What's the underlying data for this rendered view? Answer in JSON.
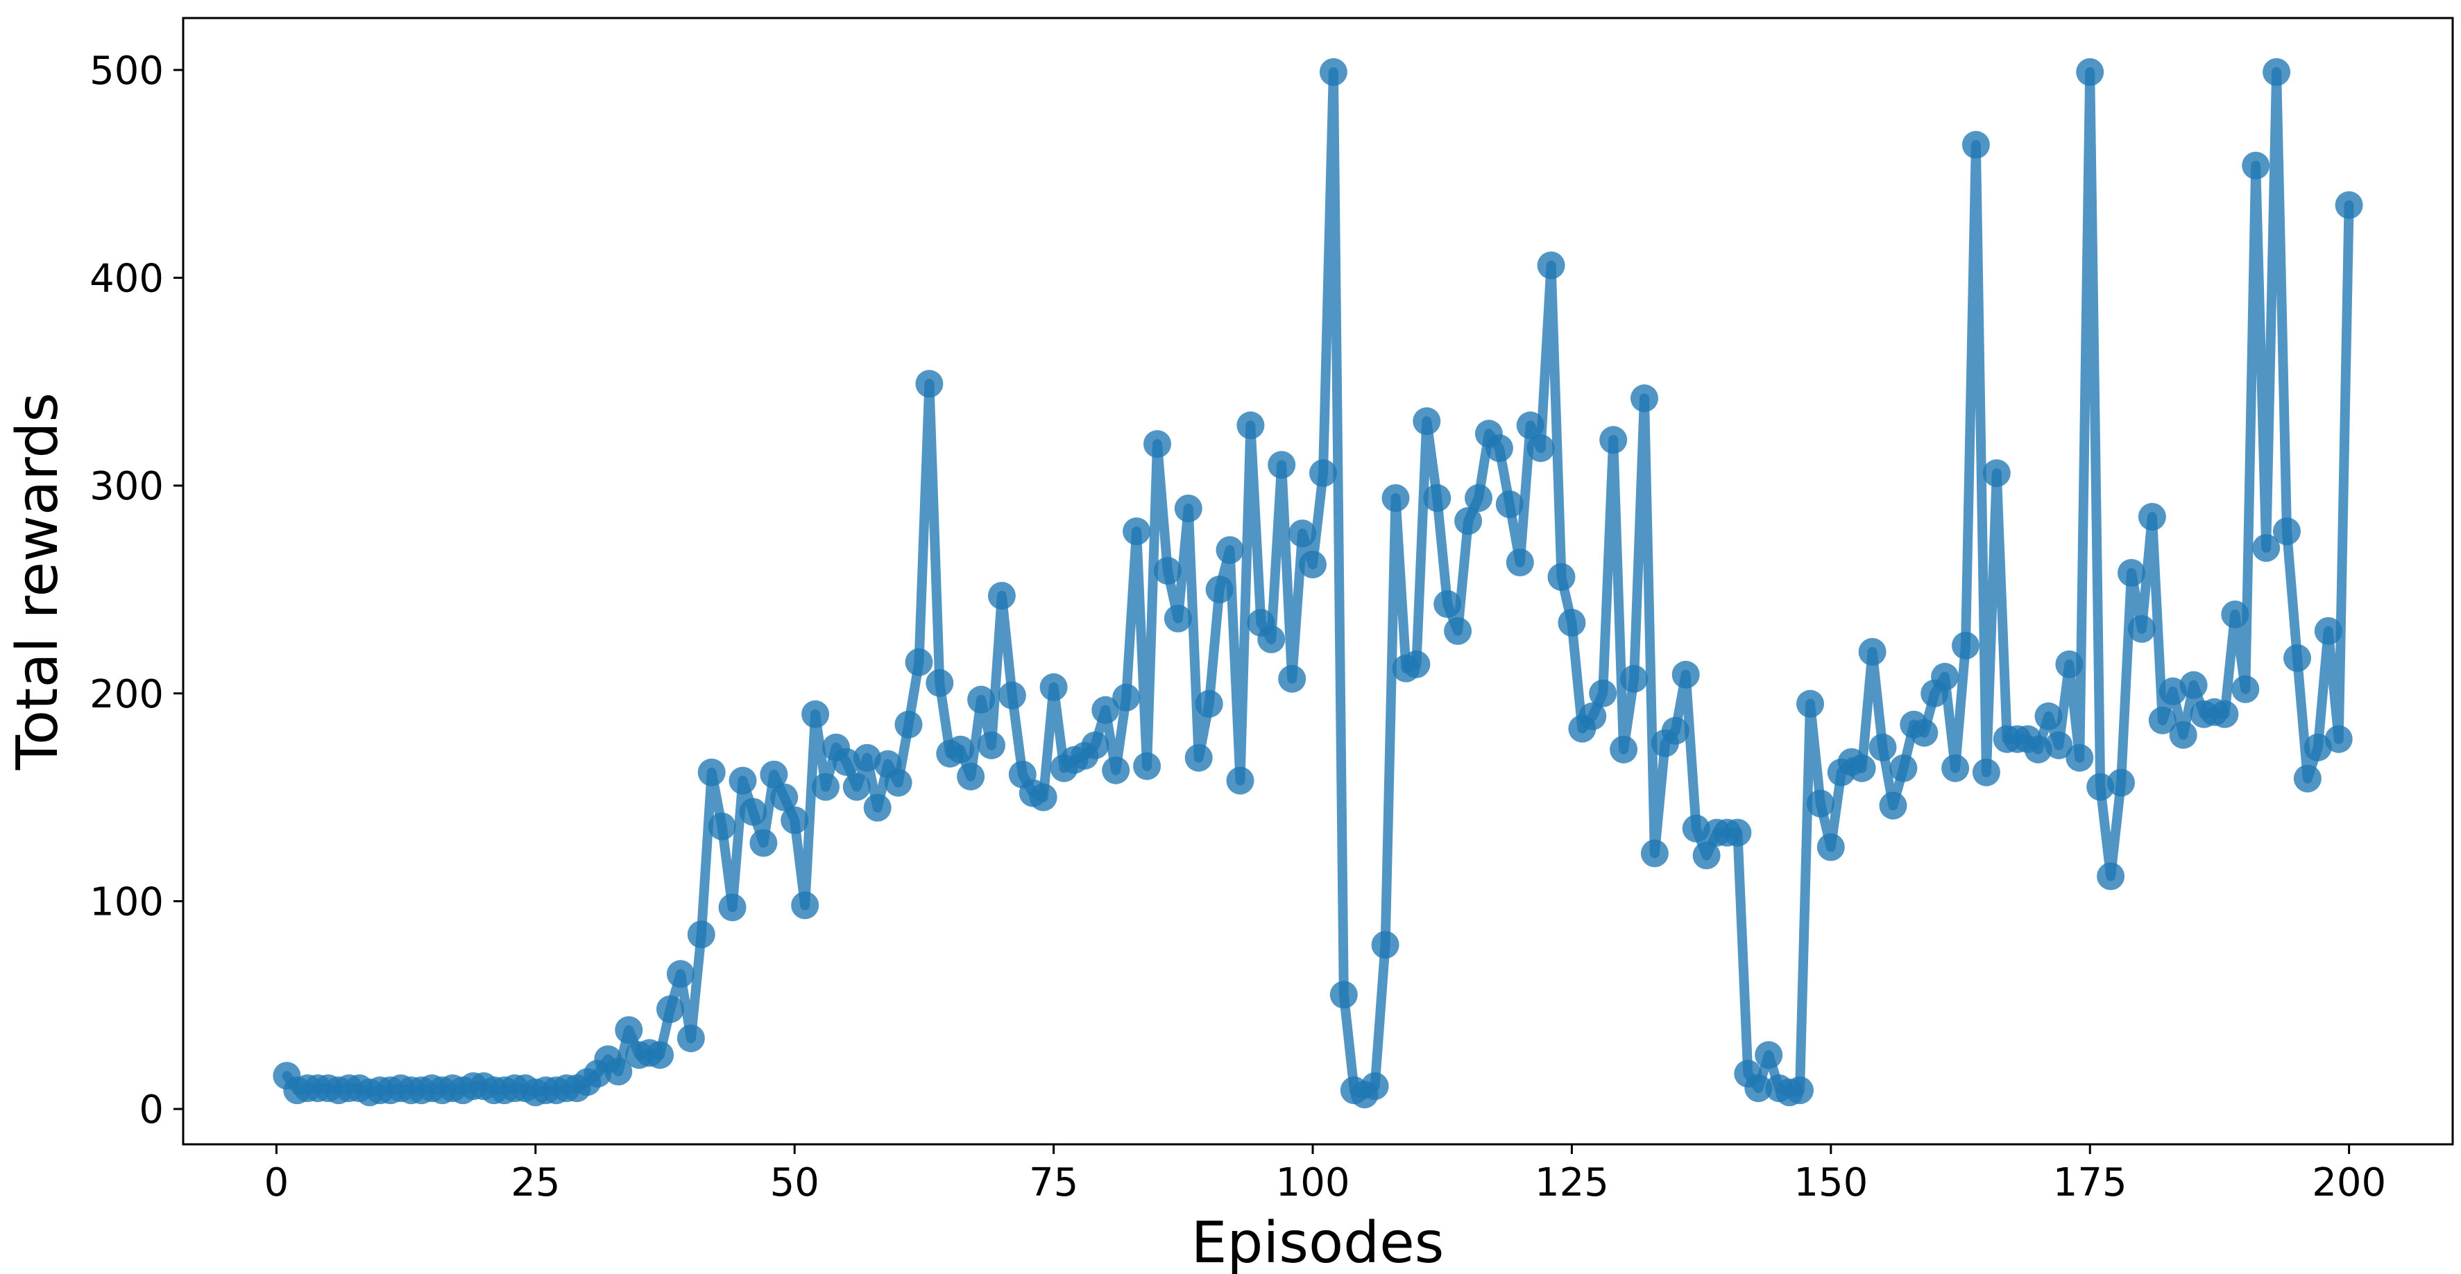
{
  "chart_data": {
    "type": "line",
    "title": "",
    "xlabel": "Episodes",
    "ylabel": "Total rewards",
    "xlim": [
      -9,
      210
    ],
    "ylim": [
      -17,
      525
    ],
    "xticks": [
      0,
      25,
      50,
      75,
      100,
      125,
      150,
      175,
      200
    ],
    "yticks": [
      0,
      100,
      200,
      300,
      400,
      500
    ],
    "xtick_labels": [
      "0",
      "25",
      "50",
      "75",
      "100",
      "125",
      "150",
      "175",
      "200"
    ],
    "ytick_labels": [
      "0",
      "100",
      "200",
      "300",
      "400",
      "500"
    ],
    "grid": false,
    "legend": false,
    "color": "#1f77b4",
    "series": [
      {
        "x": [
          1,
          2,
          3,
          4,
          5,
          6,
          7,
          8,
          9,
          10,
          11,
          12,
          13,
          14,
          15,
          16,
          17,
          18,
          19,
          20,
          21,
          22,
          23,
          24,
          25,
          26,
          27,
          28,
          29,
          30,
          31,
          32,
          33,
          34,
          35,
          36,
          37,
          38,
          39,
          40,
          41,
          42,
          43,
          44,
          45,
          46,
          47,
          48,
          49,
          50,
          51,
          52,
          53,
          54,
          55,
          56,
          57,
          58,
          59,
          60,
          61,
          62,
          63,
          64,
          65,
          66,
          67,
          68,
          69,
          70,
          71,
          72,
          73,
          74,
          75,
          76,
          77,
          78,
          79,
          80,
          81,
          82,
          83,
          84,
          85,
          86,
          87,
          88,
          89,
          90,
          91,
          92,
          93,
          94,
          95,
          96,
          97,
          98,
          99,
          100,
          101,
          102,
          103,
          104,
          105,
          106,
          107,
          108,
          109,
          110,
          111,
          112,
          113,
          114,
          115,
          116,
          117,
          118,
          119,
          120,
          121,
          122,
          123,
          124,
          125,
          126,
          127,
          128,
          129,
          130,
          131,
          132,
          133,
          134,
          135,
          136,
          137,
          138,
          139,
          140,
          141,
          142,
          143,
          144,
          145,
          146,
          147,
          148,
          149,
          150,
          151,
          152,
          153,
          154,
          155,
          156,
          157,
          158,
          159,
          160,
          161,
          162,
          163,
          164,
          165,
          166,
          167,
          168,
          169,
          170,
          171,
          172,
          173,
          174,
          175,
          176,
          177,
          178,
          179,
          180,
          181,
          182,
          183,
          184,
          185,
          186,
          187,
          188,
          189,
          190,
          191,
          192,
          193,
          194,
          195,
          196,
          197,
          198,
          199,
          200
        ],
        "y": [
          16,
          9,
          10,
          10,
          10,
          9,
          10,
          10,
          8,
          9,
          9,
          10,
          9,
          9,
          10,
          9,
          10,
          9,
          11,
          11,
          9,
          9,
          10,
          10,
          8,
          9,
          9,
          10,
          10,
          13,
          17,
          24,
          18,
          38,
          26,
          27,
          26,
          48,
          65,
          34,
          84,
          162,
          136,
          97,
          158,
          143,
          128,
          161,
          150,
          139,
          98,
          190,
          155,
          174,
          167,
          155,
          169,
          145,
          166,
          157,
          185,
          215,
          349,
          205,
          171,
          173,
          160,
          197,
          175,
          247,
          199,
          161,
          152,
          150,
          203,
          164,
          168,
          170,
          175,
          192,
          163,
          198,
          278,
          165,
          320,
          259,
          236,
          289,
          169,
          195,
          250,
          269,
          158,
          329,
          234,
          226,
          310,
          207,
          277,
          262,
          306,
          499,
          55,
          9,
          7,
          11,
          79,
          294,
          212,
          214,
          331,
          294,
          243,
          230,
          283,
          294,
          325,
          318,
          291,
          263,
          329,
          318,
          406,
          256,
          234,
          183,
          189,
          200,
          322,
          173,
          207,
          342,
          123,
          176,
          182,
          209,
          135,
          122,
          133,
          133,
          133,
          17,
          10,
          26,
          10,
          8,
          9,
          195,
          147,
          126,
          162,
          167,
          164,
          220,
          174,
          146,
          164,
          185,
          181,
          200,
          208,
          164,
          223,
          464,
          162,
          306,
          178,
          178,
          178,
          173,
          189,
          175,
          214,
          169,
          499,
          155,
          112,
          157,
          258,
          231,
          285,
          187,
          201,
          180,
          204,
          190,
          191,
          190,
          238,
          202,
          454,
          270,
          499,
          278,
          217,
          159,
          174,
          230,
          178,
          435
        ]
      }
    ]
  }
}
